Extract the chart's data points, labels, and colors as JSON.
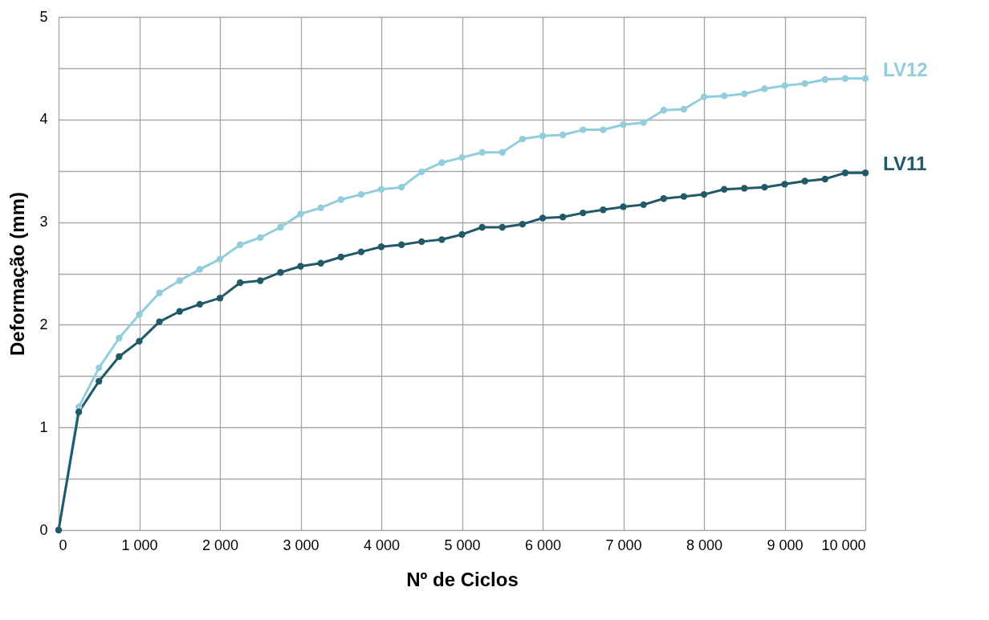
{
  "chart_data": {
    "type": "line",
    "xlabel": "Nº de Ciclos",
    "ylabel": "Deformação (mm)",
    "x": [
      0,
      250,
      500,
      750,
      1000,
      1250,
      1500,
      1750,
      2000,
      2250,
      2500,
      2750,
      3000,
      3250,
      3500,
      3750,
      4000,
      4250,
      4500,
      4750,
      5000,
      5250,
      5500,
      5750,
      6000,
      6250,
      6500,
      6750,
      7000,
      7250,
      7500,
      7750,
      8000,
      8250,
      8500,
      8750,
      9000,
      9250,
      9500,
      9750,
      10000
    ],
    "series": [
      {
        "name": "LV12",
        "color": "#92cddc",
        "values": [
          0,
          1.2,
          1.58,
          1.87,
          2.1,
          2.31,
          2.43,
          2.54,
          2.64,
          2.78,
          2.85,
          2.95,
          3.08,
          3.14,
          3.22,
          3.27,
          3.32,
          3.34,
          3.49,
          3.58,
          3.63,
          3.68,
          3.68,
          3.81,
          3.84,
          3.85,
          3.9,
          3.9,
          3.95,
          3.97,
          4.09,
          4.1,
          4.22,
          4.23,
          4.25,
          4.3,
          4.33,
          4.35,
          4.39,
          4.4,
          4.4
        ]
      },
      {
        "name": "LV11",
        "color": "#215968",
        "values": [
          0,
          1.15,
          1.45,
          1.69,
          1.84,
          2.03,
          2.13,
          2.2,
          2.26,
          2.41,
          2.43,
          2.51,
          2.57,
          2.6,
          2.66,
          2.71,
          2.76,
          2.78,
          2.81,
          2.83,
          2.88,
          2.95,
          2.95,
          2.98,
          3.04,
          3.05,
          3.09,
          3.12,
          3.15,
          3.17,
          3.23,
          3.25,
          3.27,
          3.32,
          3.33,
          3.34,
          3.37,
          3.4,
          3.42,
          3.48,
          3.48
        ]
      }
    ],
    "xlim": [
      0,
      10000
    ],
    "xticks": [
      0,
      {
        "value": 1000,
        "label": "1 000"
      },
      {
        "value": 2000,
        "label": "2 000"
      },
      {
        "value": 3000,
        "label": "3 000"
      },
      {
        "value": 4000,
        "label": "4 000"
      },
      {
        "value": 5000,
        "label": "5 000"
      },
      {
        "value": 6000,
        "label": "6 000"
      },
      {
        "value": 7000,
        "label": "7 000"
      },
      {
        "value": 8000,
        "label": "8 000"
      },
      {
        "value": 9000,
        "label": "9 000"
      },
      {
        "value": 10000,
        "label": "10 000"
      }
    ],
    "ylim": [
      0,
      5
    ],
    "yticks": [
      0,
      {
        "value": 0.5,
        "label": null
      },
      1,
      {
        "value": 1.5,
        "label": null
      },
      2,
      {
        "value": 2.5,
        "label": null
      },
      3,
      {
        "value": 3.5,
        "label": null
      },
      4,
      {
        "value": 4.5,
        "label": null
      },
      5
    ],
    "grid": true,
    "marker": "circle",
    "line_style": "solid"
  }
}
